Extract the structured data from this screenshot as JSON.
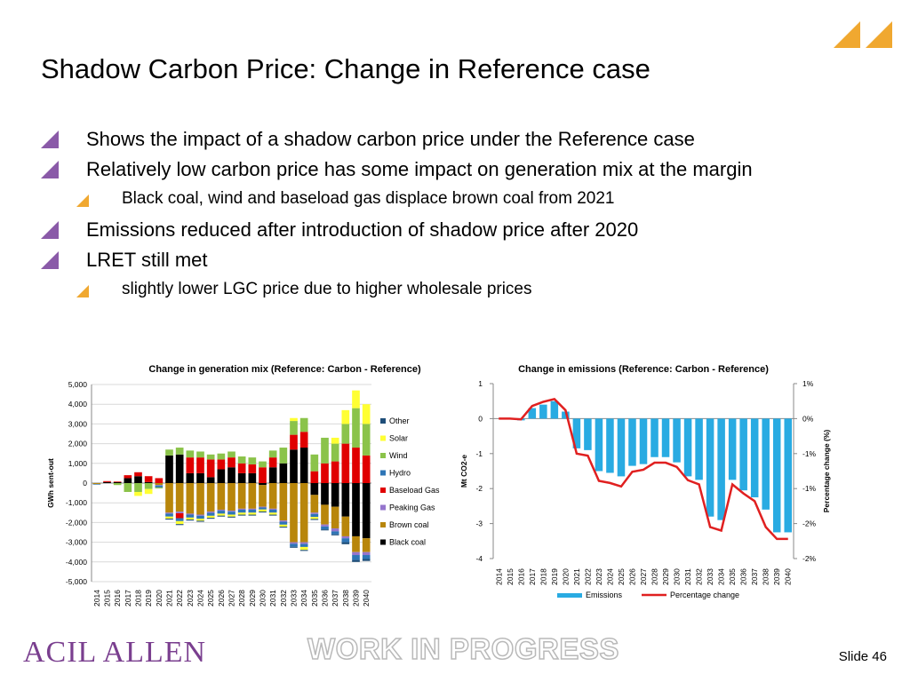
{
  "slide": {
    "title": "Shadow Carbon Price: Change in Reference case",
    "logo_text": "ACIL ALLEN",
    "watermark": "WORK IN PROGRESS",
    "slide_number": "Slide 46",
    "colors": {
      "bullet": "#8a5aa8",
      "sub_bullet": "#f0a830",
      "accent": "#f0a830"
    }
  },
  "bullets": [
    {
      "level": 1,
      "text": "Shows the impact of a shadow carbon price under the Reference case"
    },
    {
      "level": 1,
      "text": "Relatively low carbon price has some impact on generation mix at the margin"
    },
    {
      "level": 2,
      "text": "Black coal, wind and baseload gas displace brown coal from 2021"
    },
    {
      "level": 1,
      "text": "Emissions reduced after introduction of shadow price after 2020"
    },
    {
      "level": 1,
      "text": "LRET still met"
    },
    {
      "level": 2,
      "text": "slightly lower LGC price due to higher wholesale prices"
    }
  ],
  "chart_data": [
    {
      "type": "bar",
      "stacked": true,
      "title": "Change in generation mix (Reference: Carbon - Reference)",
      "ylabel": "GWh sent-out",
      "xlabel": "",
      "ylim": [
        -5000,
        5000
      ],
      "yticks": [
        "5,000",
        "4,000",
        "3,000",
        "2,000",
        "1,000",
        "0",
        "-1,000",
        "-2,000",
        "-3,000",
        "-4,000",
        "-5,000"
      ],
      "legend_position": "right",
      "categories": [
        "2014",
        "2015",
        "2016",
        "2017",
        "2018",
        "2019",
        "2020",
        "2021",
        "2022",
        "2023",
        "2024",
        "2025",
        "2026",
        "2027",
        "2028",
        "2029",
        "2030",
        "2031",
        "2032",
        "2033",
        "2034",
        "2035",
        "2036",
        "2037",
        "2038",
        "2039",
        "2040"
      ],
      "series": [
        {
          "name": "Black coal",
          "color": "#000000",
          "values": [
            0,
            50,
            50,
            250,
            350,
            50,
            0,
            1400,
            1450,
            500,
            500,
            300,
            700,
            800,
            500,
            500,
            -100,
            800,
            1000,
            1700,
            1800,
            -600,
            -1100,
            -1200,
            -1700,
            -2700,
            -2800
          ]
        },
        {
          "name": "Brown coal",
          "color": "#b8860b",
          "values": [
            -50,
            0,
            0,
            0,
            0,
            0,
            -100,
            -1500,
            -1450,
            -1550,
            -1600,
            -1450,
            -1350,
            -1400,
            -1300,
            -1300,
            -1100,
            -1300,
            -1900,
            -3000,
            -3000,
            -900,
            -1000,
            -1100,
            -1000,
            -800,
            -700
          ]
        },
        {
          "name": "Peaking Gas",
          "color": "#9575cd",
          "values": [
            0,
            0,
            0,
            0,
            0,
            0,
            -20,
            -50,
            -80,
            -50,
            -60,
            -60,
            -50,
            -50,
            -50,
            -50,
            -40,
            -50,
            -60,
            -80,
            -90,
            -70,
            -100,
            -150,
            -100,
            -150,
            -150
          ]
        },
        {
          "name": "Baseload Gas",
          "color": "#e00000",
          "values": [
            0,
            50,
            30,
            150,
            200,
            300,
            250,
            0,
            -250,
            800,
            800,
            900,
            500,
            500,
            500,
            450,
            800,
            500,
            0,
            750,
            800,
            600,
            1000,
            1100,
            2000,
            1800,
            1400
          ]
        },
        {
          "name": "Hydro",
          "color": "#2e75b6",
          "values": [
            -30,
            0,
            0,
            0,
            0,
            0,
            -100,
            -150,
            -150,
            -150,
            -150,
            -150,
            -150,
            -150,
            -150,
            -150,
            -100,
            -150,
            -150,
            -150,
            -150,
            -150,
            -150,
            -150,
            -200,
            -250,
            -200
          ]
        },
        {
          "name": "Wind",
          "color": "#8bc34a",
          "values": [
            0,
            0,
            -100,
            -450,
            -450,
            -300,
            -50,
            300,
            350,
            350,
            300,
            250,
            300,
            300,
            350,
            350,
            300,
            350,
            800,
            700,
            700,
            850,
            1300,
            900,
            1000,
            2000,
            1600
          ]
        },
        {
          "name": "Solar",
          "color": "#ffff33",
          "values": [
            0,
            0,
            0,
            0,
            -200,
            -250,
            0,
            -100,
            -150,
            -100,
            -100,
            -100,
            -100,
            -100,
            -100,
            -100,
            -100,
            -100,
            -100,
            150,
            -150,
            -100,
            0,
            300,
            700,
            900,
            1000
          ]
        },
        {
          "name": "Other",
          "color": "#1f4e79",
          "values": [
            0,
            0,
            0,
            0,
            0,
            0,
            0,
            -50,
            -50,
            -50,
            -50,
            -50,
            -50,
            -50,
            -50,
            -50,
            -50,
            -50,
            -50,
            -50,
            -50,
            -50,
            -50,
            -50,
            -100,
            -100,
            -100
          ]
        }
      ]
    },
    {
      "type": "bar+line",
      "title": "Change in emissions (Reference: Carbon - Reference)",
      "ylabel": "Mt CO2-e",
      "y2label": "Percentage change (%)",
      "ylim": [
        -4,
        1
      ],
      "yticks": [
        "1",
        "0",
        "-1",
        "-2",
        "-3",
        "-4"
      ],
      "y2lim": [
        -2,
        0.5
      ],
      "y2ticks": [
        "1%",
        "0%",
        "-1%",
        "-1%",
        "-2%",
        "-2%"
      ],
      "legend_position": "bottom",
      "categories": [
        "2014",
        "2015",
        "2016",
        "2017",
        "2018",
        "2019",
        "2020",
        "2021",
        "2022",
        "2023",
        "2024",
        "2025",
        "2026",
        "2027",
        "2028",
        "2029",
        "2030",
        "2031",
        "2032",
        "2033",
        "2034",
        "2035",
        "2036",
        "2037",
        "2038",
        "2039",
        "2040"
      ],
      "series": [
        {
          "name": "Emissions",
          "type": "bar",
          "color": "#29abe2",
          "values": [
            0,
            0,
            -0.05,
            0.3,
            0.4,
            0.5,
            0.2,
            -0.85,
            -0.9,
            -1.5,
            -1.55,
            -1.65,
            -1.35,
            -1.3,
            -1.1,
            -1.1,
            -1.25,
            -1.65,
            -1.75,
            -2.8,
            -2.9,
            -1.75,
            -2.05,
            -2.25,
            -2.6,
            -3.25,
            -3.25
          ]
        },
        {
          "name": "Percentage change",
          "type": "line",
          "color": "#e02020",
          "values": [
            0,
            0,
            -0.01,
            0.18,
            0.24,
            0.28,
            0.12,
            -0.5,
            -0.53,
            -0.89,
            -0.92,
            -0.97,
            -0.76,
            -0.73,
            -0.63,
            -0.63,
            -0.69,
            -0.88,
            -0.94,
            -1.55,
            -1.6,
            -0.94,
            -1.07,
            -1.18,
            -1.55,
            -1.72,
            -1.72
          ]
        }
      ]
    }
  ]
}
